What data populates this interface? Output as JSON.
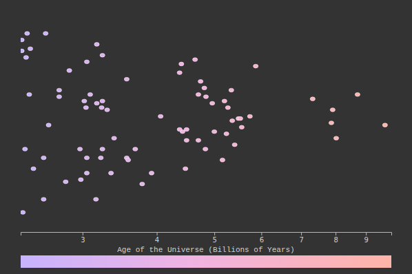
{
  "chart_data": {
    "type": "scatter",
    "x_label": "Age of the Universe (Billions of Years)",
    "log": "x",
    "tick_labels": "x",
    "grid": false,
    "marker": "ellipse",
    "x": [
      2.42,
      2.6,
      2.37,
      2.41,
      2.44,
      2.4,
      2.48,
      2.58,
      2.63,
      2.38,
      2.58,
      2.85,
      3.05,
      3.17,
      3.24,
      2.74,
      2.74,
      3.02,
      3.09,
      3.04,
      3.17,
      3.24,
      3.23,
      3.3,
      3.24,
      3.39,
      3.56,
      3.58,
      3.68,
      3.56,
      3.22,
      3.05,
      2.98,
      3.05,
      2.81,
      3.16,
      3.35,
      3.78,
      3.92,
      4.06,
      4.4,
      4.37,
      4.64,
      4.74,
      4.81,
      4.7,
      4.84,
      4.42,
      4.49,
      4.96,
      4.37,
      4.49,
      4.7,
      4.83,
      4.47,
      5.0,
      5.2,
      5.27,
      5.34,
      5.36,
      5.49,
      5.56,
      5.53,
      5.74,
      5.24,
      5.41,
      5.16,
      5.87,
      7.32,
      8.71,
      7.91,
      7.87,
      8.02,
      9.69,
      2.97,
      2.37,
      2.45
    ],
    "values": [
      0.91,
      0.91,
      0.83,
      0.8,
      0.63,
      0.38,
      0.29,
      0.34,
      0.49,
      0.09,
      0.15,
      0.74,
      0.78,
      0.86,
      0.81,
      0.65,
      0.62,
      0.6,
      0.63,
      0.57,
      0.59,
      0.6,
      0.57,
      0.56,
      0.38,
      0.43,
      0.34,
      0.33,
      0.38,
      0.7,
      0.34,
      0.34,
      0.24,
      0.27,
      0.23,
      0.15,
      0.27,
      0.22,
      0.27,
      0.53,
      0.77,
      0.73,
      0.79,
      0.69,
      0.66,
      0.63,
      0.62,
      0.46,
      0.47,
      0.59,
      0.47,
      0.42,
      0.42,
      0.38,
      0.29,
      0.46,
      0.6,
      0.57,
      0.65,
      0.51,
      0.52,
      0.48,
      0.52,
      0.53,
      0.45,
      0.4,
      0.33,
      0.76,
      0.61,
      0.63,
      0.56,
      0.5,
      0.43,
      0.49,
      0.38,
      0.88,
      0.84
    ],
    "xlim": [
      2.36,
      9.93
    ],
    "xticks": [
      3,
      4,
      5,
      6,
      7,
      8,
      9
    ],
    "ylim": [
      0,
      1
    ]
  }
}
